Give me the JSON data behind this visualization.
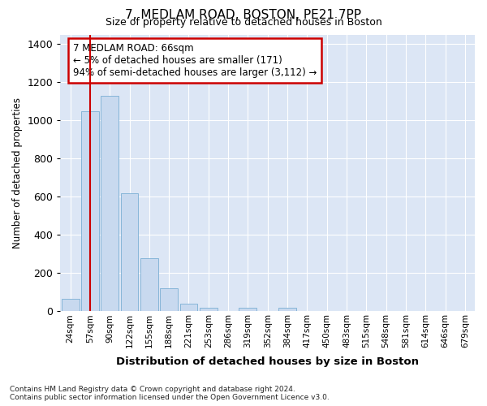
{
  "title1": "7, MEDLAM ROAD, BOSTON, PE21 7PP",
  "title2": "Size of property relative to detached houses in Boston",
  "xlabel": "Distribution of detached houses by size in Boston",
  "ylabel": "Number of detached properties",
  "categories": [
    "24sqm",
    "57sqm",
    "90sqm",
    "122sqm",
    "155sqm",
    "188sqm",
    "221sqm",
    "253sqm",
    "286sqm",
    "319sqm",
    "352sqm",
    "384sqm",
    "417sqm",
    "450sqm",
    "483sqm",
    "515sqm",
    "548sqm",
    "581sqm",
    "614sqm",
    "646sqm",
    "679sqm"
  ],
  "values": [
    65,
    1050,
    1130,
    620,
    280,
    120,
    40,
    20,
    0,
    20,
    0,
    20,
    0,
    0,
    0,
    0,
    0,
    0,
    0,
    0,
    0
  ],
  "bar_color": "#c8d9ef",
  "bar_edge_color": "#7aafd4",
  "fig_bg_color": "#ffffff",
  "ax_bg_color": "#dce6f5",
  "grid_color": "#ffffff",
  "vline_x": 1,
  "vline_color": "#cc0000",
  "annotation_text": "7 MEDLAM ROAD: 66sqm\n← 5% of detached houses are smaller (171)\n94% of semi-detached houses are larger (3,112) →",
  "annotation_box_facecolor": "#ffffff",
  "annotation_box_edgecolor": "#cc0000",
  "footnote": "Contains HM Land Registry data © Crown copyright and database right 2024.\nContains public sector information licensed under the Open Government Licence v3.0.",
  "ylim": [
    0,
    1450
  ],
  "yticks": [
    0,
    200,
    400,
    600,
    800,
    1000,
    1200,
    1400
  ]
}
